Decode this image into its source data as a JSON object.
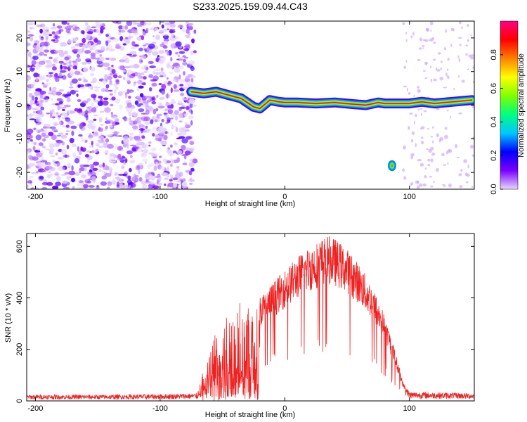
{
  "title": "S233.2025.159.09.44.C43",
  "colors": {
    "snr_line": "#ee2222",
    "frame": "#000000"
  },
  "chart_data": [
    {
      "type": "heatmap",
      "xlabel": "Height of straight line (km)",
      "ylabel": "Frequency (Hz)",
      "xlim": [
        -207,
        152
      ],
      "ylim": [
        -25,
        25
      ],
      "xticks": [
        -200,
        -100,
        0,
        100
      ],
      "yticks": [
        -20,
        -10,
        0,
        10,
        20
      ],
      "colorbar": {
        "label": "Normalized spectral amplitude",
        "range": [
          0,
          1
        ],
        "ticks": [
          "0.0",
          "0.2",
          "0.4",
          "0.6",
          "0.8"
        ],
        "colors": [
          "#e8d8ff",
          "#7a00ff",
          "#0000ff",
          "#00c8ff",
          "#00ff80",
          "#80ff00",
          "#ffff00",
          "#ff8000",
          "#ff0000",
          "#ff0080"
        ]
      },
      "signal_track": [
        [
          -75,
          4
        ],
        [
          -65,
          3.5
        ],
        [
          -55,
          4
        ],
        [
          -45,
          3
        ],
        [
          -35,
          2
        ],
        [
          -25,
          -0.5
        ],
        [
          -20,
          -1
        ],
        [
          -12,
          1.5
        ],
        [
          -5,
          1
        ],
        [
          0,
          0.8
        ],
        [
          10,
          0.8
        ],
        [
          25,
          0.5
        ],
        [
          40,
          0.8
        ],
        [
          55,
          0.3
        ],
        [
          65,
          0
        ],
        [
          75,
          0.8
        ],
        [
          80,
          0.5
        ],
        [
          90,
          0.5
        ],
        [
          100,
          0.5
        ],
        [
          110,
          1
        ],
        [
          120,
          0.5
        ],
        [
          135,
          1
        ],
        [
          150,
          1.5
        ]
      ],
      "noise_region": [
        -207,
        -75
      ]
    },
    {
      "type": "line",
      "xlabel": "Height of straight line (km)",
      "ylabel": "SNR (10 * v/v)",
      "xlim": [
        -207,
        152
      ],
      "ylim": [
        0,
        650
      ],
      "xticks": [
        -200,
        -100,
        0,
        100
      ],
      "yticks": [
        0,
        200,
        400,
        600
      ],
      "envelope": [
        [
          -207,
          20
        ],
        [
          -150,
          20
        ],
        [
          -100,
          22
        ],
        [
          -70,
          25
        ],
        [
          -65,
          120
        ],
        [
          -60,
          200
        ],
        [
          -55,
          280
        ],
        [
          -50,
          320
        ],
        [
          -45,
          330
        ],
        [
          -40,
          340
        ],
        [
          -35,
          370
        ],
        [
          -30,
          390
        ],
        [
          -25,
          380
        ],
        [
          -20,
          400
        ],
        [
          -15,
          420
        ],
        [
          -10,
          450
        ],
        [
          0,
          500
        ],
        [
          10,
          550
        ],
        [
          20,
          590
        ],
        [
          30,
          620
        ],
        [
          35,
          630
        ],
        [
          40,
          620
        ],
        [
          50,
          580
        ],
        [
          60,
          520
        ],
        [
          70,
          440
        ],
        [
          80,
          330
        ],
        [
          88,
          200
        ],
        [
          95,
          70
        ],
        [
          100,
          30
        ],
        [
          152,
          25
        ]
      ]
    }
  ]
}
